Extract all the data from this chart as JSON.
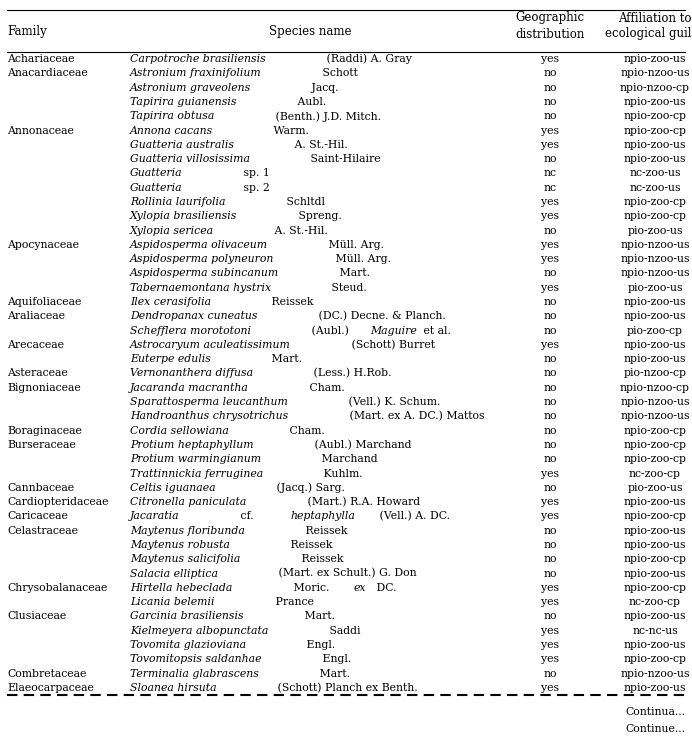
{
  "col_headers": [
    "Family",
    "Species name",
    "Geographic\ndistribution",
    "Affiliation to\necological guilds"
  ],
  "rows": [
    [
      "Achariaceae",
      [
        [
          "Carpotroche brasiliensis",
          true
        ],
        [
          " (Raddi) A. Gray",
          false
        ]
      ],
      "yes",
      "npio-zoo-us"
    ],
    [
      "Anacardiaceae",
      [
        [
          "Astronium fraxinifolium",
          true
        ],
        [
          " Schott",
          false
        ]
      ],
      "no",
      "npio-nzoo-us"
    ],
    [
      "",
      [
        [
          "Astronium graveolens",
          true
        ],
        [
          " Jacq.",
          false
        ]
      ],
      "no",
      "npio-nzoo-cp"
    ],
    [
      "",
      [
        [
          "Tapirira guianensis",
          true
        ],
        [
          " Aubl.",
          false
        ]
      ],
      "no",
      "npio-zoo-us"
    ],
    [
      "",
      [
        [
          "Tapirira obtusa",
          true
        ],
        [
          " (Benth.) J.D. Mitch.",
          false
        ]
      ],
      "no",
      "npio-zoo-cp"
    ],
    [
      "Annonaceae",
      [
        [
          "Annona cacans",
          true
        ],
        [
          " Warm.",
          false
        ]
      ],
      "yes",
      "npio-zoo-cp"
    ],
    [
      "",
      [
        [
          "Guatteria australis",
          true
        ],
        [
          " A. St.-Hil.",
          false
        ]
      ],
      "yes",
      "npio-zoo-us"
    ],
    [
      "",
      [
        [
          "Guatteria villosissima",
          true
        ],
        [
          " Saint-Hilaire",
          false
        ]
      ],
      "no",
      "npio-zoo-us"
    ],
    [
      "",
      [
        [
          "Guatteria",
          true
        ],
        [
          " sp. 1",
          false
        ]
      ],
      "nc",
      "nc-zoo-us"
    ],
    [
      "",
      [
        [
          "Guatteria",
          true
        ],
        [
          " sp. 2",
          false
        ]
      ],
      "nc",
      "nc-zoo-us"
    ],
    [
      "",
      [
        [
          "Rollinia laurifolia",
          true
        ],
        [
          " Schltdl",
          false
        ]
      ],
      "yes",
      "npio-zoo-cp"
    ],
    [
      "",
      [
        [
          "Xylopia brasiliensis",
          true
        ],
        [
          " Spreng.",
          false
        ]
      ],
      "yes",
      "npio-zoo-cp"
    ],
    [
      "",
      [
        [
          "Xylopia sericea",
          true
        ],
        [
          " A. St.-Hil.",
          false
        ]
      ],
      "no",
      "pio-zoo-us"
    ],
    [
      "Apocynaceae",
      [
        [
          "Aspidosperma olivaceum",
          true
        ],
        [
          " Müll. Arg.",
          false
        ]
      ],
      "yes",
      "npio-nzoo-us"
    ],
    [
      "",
      [
        [
          "Aspidosperma polyneuron",
          true
        ],
        [
          " Müll. Arg.",
          false
        ]
      ],
      "yes",
      "npio-nzoo-us"
    ],
    [
      "",
      [
        [
          "Aspidosperma subincanum",
          true
        ],
        [
          " Mart.",
          false
        ]
      ],
      "no",
      "npio-nzoo-us"
    ],
    [
      "",
      [
        [
          "Tabernaemontana hystrix",
          true
        ],
        [
          " Steud.",
          false
        ]
      ],
      "yes",
      "pio-zoo-us"
    ],
    [
      "Aquifoliaceae",
      [
        [
          "Ilex cerasifolia",
          true
        ],
        [
          " Reissek",
          false
        ]
      ],
      "no",
      "npio-zoo-us"
    ],
    [
      "Araliaceae",
      [
        [
          "Dendropanax cuneatus",
          true
        ],
        [
          " (DC.) Decne. & Planch.",
          false
        ]
      ],
      "no",
      "npio-zoo-us"
    ],
    [
      "",
      [
        [
          "Schefflera morototoni",
          true
        ],
        [
          " (Aubl.) ",
          false
        ],
        [
          "Maguire",
          true
        ],
        [
          " et al.",
          false
        ]
      ],
      "no",
      "pio-zoo-cp"
    ],
    [
      "Arecaceae",
      [
        [
          "Astrocaryum aculeatissimum",
          true
        ],
        [
          " (Schott) Burret",
          false
        ]
      ],
      "yes",
      "npio-zoo-us"
    ],
    [
      "",
      [
        [
          "Euterpe edulis",
          true
        ],
        [
          " Mart.",
          false
        ]
      ],
      "no",
      "npio-zoo-us"
    ],
    [
      "Asteraceae",
      [
        [
          "Vernonanthera diffusa",
          true
        ],
        [
          " (Less.) H.Rob.",
          false
        ]
      ],
      "no",
      "pio-nzoo-cp"
    ],
    [
      "Bignoniaceae",
      [
        [
          "Jacaranda macrantha",
          true
        ],
        [
          " Cham.",
          false
        ]
      ],
      "no",
      "npio-nzoo-cp"
    ],
    [
      "",
      [
        [
          "Sparattosperma leucanthum",
          true
        ],
        [
          " (Vell.) K. Schum.",
          false
        ]
      ],
      "no",
      "npio-nzoo-us"
    ],
    [
      "",
      [
        [
          "Handroanthus chrysotrichus",
          true
        ],
        [
          " (Mart. ex A. DC.) Mattos",
          false
        ]
      ],
      "no",
      "npio-nzoo-us"
    ],
    [
      "Boraginaceae",
      [
        [
          "Cordia sellowiana",
          true
        ],
        [
          " Cham.",
          false
        ]
      ],
      "no",
      "npio-zoo-cp"
    ],
    [
      "Burseraceae",
      [
        [
          "Protium heptaphyllum",
          true
        ],
        [
          " (Aubl.) Marchand",
          false
        ]
      ],
      "no",
      "npio-zoo-cp"
    ],
    [
      "",
      [
        [
          "Protium warmingianum",
          true
        ],
        [
          " Marchand",
          false
        ]
      ],
      "no",
      "npio-zoo-cp"
    ],
    [
      "",
      [
        [
          "Trattinnickia ferruginea",
          true
        ],
        [
          " Kuhlm.",
          false
        ]
      ],
      "yes",
      "nc-zoo-cp"
    ],
    [
      "Cannbaceae",
      [
        [
          "Celtis iguanaea",
          true
        ],
        [
          " (Jacq.) Sarg.",
          false
        ]
      ],
      "no",
      "pio-zoo-us"
    ],
    [
      "Cardiopteridaceae",
      [
        [
          "Citronella paniculata",
          true
        ],
        [
          " (Mart.) R.A. Howard",
          false
        ]
      ],
      "yes",
      "npio-zoo-us"
    ],
    [
      "Caricaceae",
      [
        [
          "Jacaratia",
          true
        ],
        [
          " cf. ",
          false
        ],
        [
          "heptaphylla",
          true
        ],
        [
          " (Vell.) A. DC.",
          false
        ]
      ],
      "yes",
      "npio-zoo-cp"
    ],
    [
      "Celastraceae",
      [
        [
          "Maytenus floribunda",
          true
        ],
        [
          " Reissek",
          false
        ]
      ],
      "no",
      "npio-zoo-us"
    ],
    [
      "",
      [
        [
          "Maytenus robusta",
          true
        ],
        [
          " Reissek",
          false
        ]
      ],
      "no",
      "npio-zoo-us"
    ],
    [
      "",
      [
        [
          "Maytenus salicifolia",
          true
        ],
        [
          " Reissek",
          false
        ]
      ],
      "no",
      "npio-zoo-cp"
    ],
    [
      "",
      [
        [
          "Salacia elliptica",
          true
        ],
        [
          " (Mart. ex Schult.) G. Don",
          false
        ]
      ],
      "no",
      "npio-zoo-us"
    ],
    [
      "Chrysobalanaceae",
      [
        [
          "Hirtella hebeclada",
          true
        ],
        [
          " Moric. ",
          false
        ],
        [
          "ex",
          true
        ],
        [
          " DC.",
          false
        ]
      ],
      "yes",
      "npio-zoo-cp"
    ],
    [
      "",
      [
        [
          "Licania belemii",
          true
        ],
        [
          " Prance",
          false
        ]
      ],
      "yes",
      "nc-zoo-cp"
    ],
    [
      "Clusiaceae",
      [
        [
          "Garcinia brasiliensis",
          true
        ],
        [
          " Mart.",
          false
        ]
      ],
      "no",
      "npio-zoo-us"
    ],
    [
      "",
      [
        [
          "Kielmeyera albopunctata",
          true
        ],
        [
          " Saddi",
          false
        ]
      ],
      "yes",
      "nc-nc-us"
    ],
    [
      "",
      [
        [
          "Tovomita glazioviana",
          true
        ],
        [
          " Engl.",
          false
        ]
      ],
      "yes",
      "npio-zoo-us"
    ],
    [
      "",
      [
        [
          "Tovomitopsis saldanhae",
          true
        ],
        [
          " Engl.",
          false
        ]
      ],
      "yes",
      "npio-zoo-cp"
    ],
    [
      "Combretaceae",
      [
        [
          "Terminalia glabrascens",
          true
        ],
        [
          " Mart.",
          false
        ]
      ],
      "no",
      "npio-nzoo-us"
    ],
    [
      "Elaeocarpaceae",
      [
        [
          "Sloanea hirsuta",
          true
        ],
        [
          " (Schott) Planch ex Benth.",
          false
        ]
      ],
      "yes",
      "npio-zoo-us"
    ]
  ],
  "continua_text": [
    "Continua...",
    "Continue..."
  ]
}
